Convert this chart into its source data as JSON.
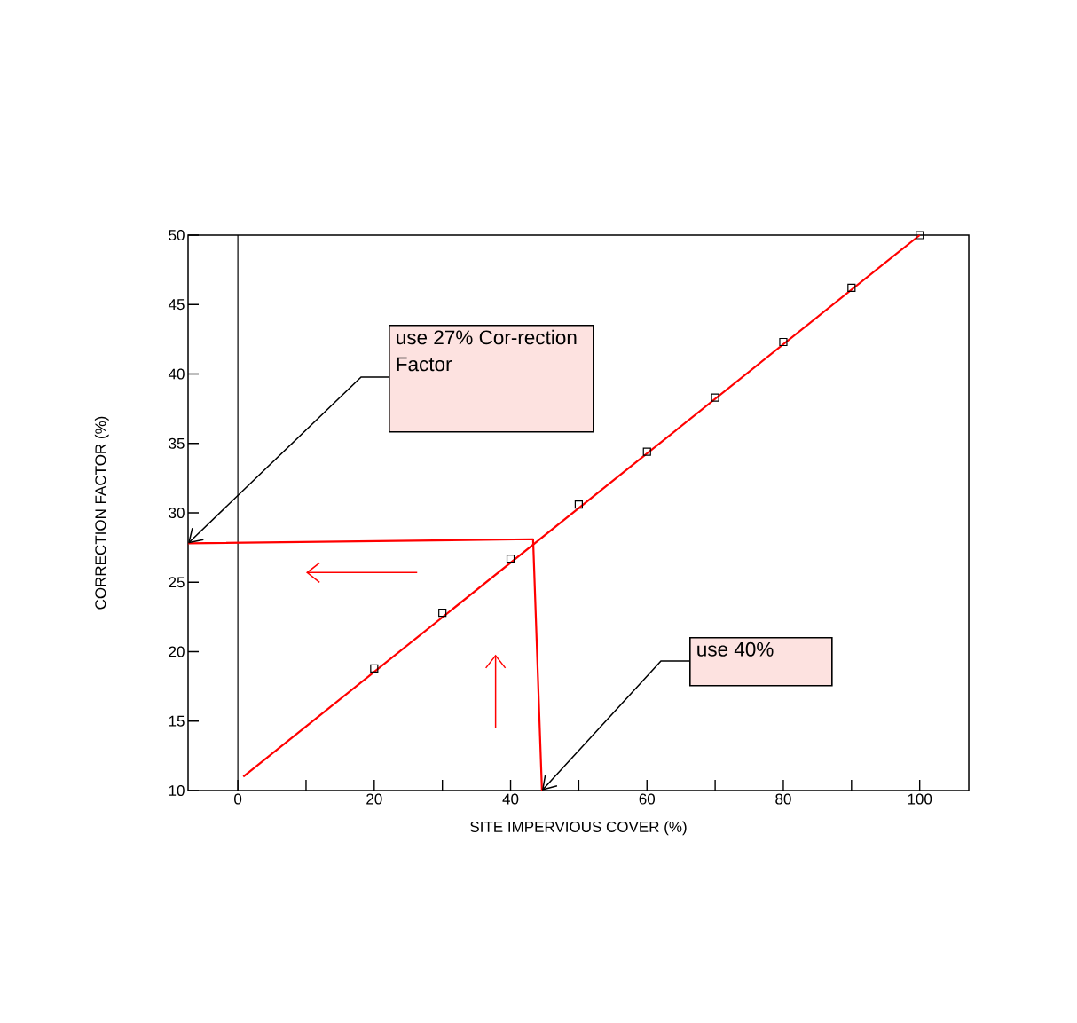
{
  "chart_data": {
    "type": "scatter",
    "xlabel": "SITE IMPERVIOUS COVER (%)",
    "ylabel": "CORRECTION FACTOR (%)",
    "xlim": [
      -7.3,
      107.2
    ],
    "ylim": [
      10,
      50
    ],
    "xticks": [
      0,
      {
        "value": 10,
        "label": null
      },
      20,
      {
        "value": 30,
        "label": null
      },
      40,
      {
        "value": 50,
        "label": null
      },
      60,
      {
        "value": 70,
        "label": null
      },
      80,
      {
        "value": 90,
        "label": null
      },
      100
    ],
    "yticks": [
      10,
      15,
      20,
      25,
      30,
      35,
      40,
      45,
      50
    ],
    "series": [
      {
        "marker": "square",
        "color": "#000000",
        "x": [
          20,
          30,
          40,
          50,
          60,
          70,
          80,
          90,
          100
        ],
        "values": [
          18.8,
          22.8,
          26.7,
          30.6,
          34.4,
          38.3,
          42.3,
          46.2,
          50
        ]
      },
      {
        "type": "line",
        "marker": "none",
        "line_style": "solid",
        "color": "#ff0000",
        "x": [
          0.8,
          100
        ],
        "values": [
          11.0,
          50
        ]
      },
      {
        "type": "line",
        "marker": "none",
        "line_style": "solid",
        "color": "#ff0000",
        "x": [
          -7.3,
          43.3,
          44.6
        ],
        "values": [
          27.8,
          28.1,
          10
        ]
      }
    ],
    "ref_lines": [
      {
        "axis": "x",
        "value": 0,
        "color": "#000000"
      }
    ],
    "annotations": [
      {
        "text": "use 27% Cor-rection Factor",
        "x": -7.3,
        "y": 27.8
      },
      {
        "text": "use 40%",
        "x": 44.6,
        "y": 10
      }
    ],
    "grid": false
  }
}
